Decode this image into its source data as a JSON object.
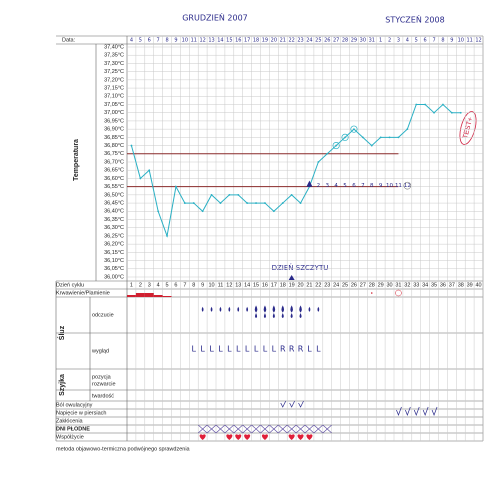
{
  "chart_data": {
    "type": "line",
    "month_labels": [
      "GRUDZIEŃ 2007",
      "STYCZEŃ 2008"
    ],
    "date_label": "Data:",
    "y_label": "Temperatura",
    "x_label": "Dzień cyklu",
    "dates": [
      4,
      5,
      6,
      7,
      8,
      9,
      10,
      11,
      12,
      13,
      14,
      15,
      16,
      17,
      18,
      19,
      20,
      21,
      22,
      23,
      24,
      25,
      26,
      27,
      28,
      29,
      30,
      31,
      1,
      2,
      3,
      4,
      5,
      6,
      7,
      8,
      9,
      10,
      11,
      12
    ],
    "x": [
      1,
      2,
      3,
      4,
      5,
      6,
      7,
      8,
      9,
      10,
      11,
      12,
      13,
      14,
      15,
      16,
      17,
      18,
      19,
      20,
      21,
      22,
      23,
      24,
      25,
      26,
      27,
      28,
      29,
      30,
      31,
      32,
      33,
      34,
      35,
      36,
      37,
      38,
      39,
      40
    ],
    "values": [
      36.8,
      36.6,
      36.65,
      36.4,
      36.25,
      36.55,
      36.45,
      36.45,
      36.4,
      36.5,
      36.45,
      36.5,
      36.5,
      36.45,
      36.45,
      36.45,
      36.4,
      36.45,
      36.5,
      36.45,
      36.55,
      36.7,
      36.75,
      36.8,
      36.85,
      36.9,
      36.85,
      36.8,
      36.85,
      36.85,
      36.85,
      36.9,
      37.05,
      37.05,
      37.0,
      37.05,
      37.0,
      37.0,
      null,
      null
    ],
    "color": "#2ab0c4",
    "reference_lines": [
      36.75,
      36.55
    ],
    "reference_color": "#8a2a2a",
    "ylim": [
      36.0,
      37.4
    ],
    "yticks": [
      {
        "value": 36.0,
        "label": "36,00°C"
      },
      {
        "value": 36.05,
        "label": "36,05°C"
      },
      {
        "value": 36.1,
        "label": "36,10°C"
      },
      {
        "value": 36.15,
        "label": "36,15°C"
      },
      {
        "value": 36.2,
        "label": "36,20°C"
      },
      {
        "value": 36.25,
        "label": "36,25°C"
      },
      {
        "value": 36.3,
        "label": "36,30°C"
      },
      {
        "value": 36.35,
        "label": "36,35°C"
      },
      {
        "value": 36.4,
        "label": "36,40°C"
      },
      {
        "value": 36.45,
        "label": "36,45°C"
      },
      {
        "value": 36.5,
        "label": "36,50°C"
      },
      {
        "value": 36.55,
        "label": "36,55°C"
      },
      {
        "value": 36.6,
        "label": "36,60°C"
      },
      {
        "value": 36.65,
        "label": "36,65°C"
      },
      {
        "value": 36.7,
        "label": "36,70°C"
      },
      {
        "value": 36.75,
        "label": "36,75°C"
      },
      {
        "value": 36.8,
        "label": "36,80°C"
      },
      {
        "value": 36.85,
        "label": "36,85°C"
      },
      {
        "value": 36.9,
        "label": "36,90°C"
      },
      {
        "value": 36.95,
        "label": "36,95°C"
      },
      {
        "value": 37.0,
        "label": "37,00°C"
      },
      {
        "value": 37.05,
        "label": "37,05°C"
      },
      {
        "value": 37.1,
        "label": "37,10°C"
      },
      {
        "value": 37.15,
        "label": "37,15°C"
      },
      {
        "value": 37.2,
        "label": "37,20°C"
      },
      {
        "value": 37.25,
        "label": "37,25°C"
      },
      {
        "value": 37.3,
        "label": "37,30°C"
      },
      {
        "value": 37.35,
        "label": "37,35°C"
      },
      {
        "value": 37.4,
        "label": "37,40°C"
      }
    ],
    "grid": true,
    "peak_label": "DZIEŃ SZCZYTU",
    "test_label": "TEST+",
    "count_labels": [
      1,
      2,
      3,
      4,
      5,
      6,
      7,
      8,
      9,
      10,
      11,
      12
    ]
  },
  "form": {
    "bleeding": "Krwawienie/Plamienie",
    "mucus": "Śluz",
    "mucus_feeling": "odczucie",
    "mucus_look": "wygląd",
    "mucus_look_marks": [
      "L",
      "L",
      "L",
      "L",
      "L",
      "L",
      "L",
      "L",
      "L",
      "L",
      "R",
      "R",
      "R",
      "L",
      "L"
    ],
    "cervix": "Szyjka",
    "cervix_position": "pozycja",
    "cervix_opening": "rozwarcie",
    "cervix_firmness": "twardość",
    "ovulation_pain": "Ból owulacyjny",
    "breast_tension": "Napięcie w piersiach",
    "disturbances": "Zakłócenia",
    "fertile_days": "DNI PŁODNE",
    "intercourse": "Współżycie",
    "footer": "metoda objawowo-termiczna podwójnego sprawdzenia"
  }
}
